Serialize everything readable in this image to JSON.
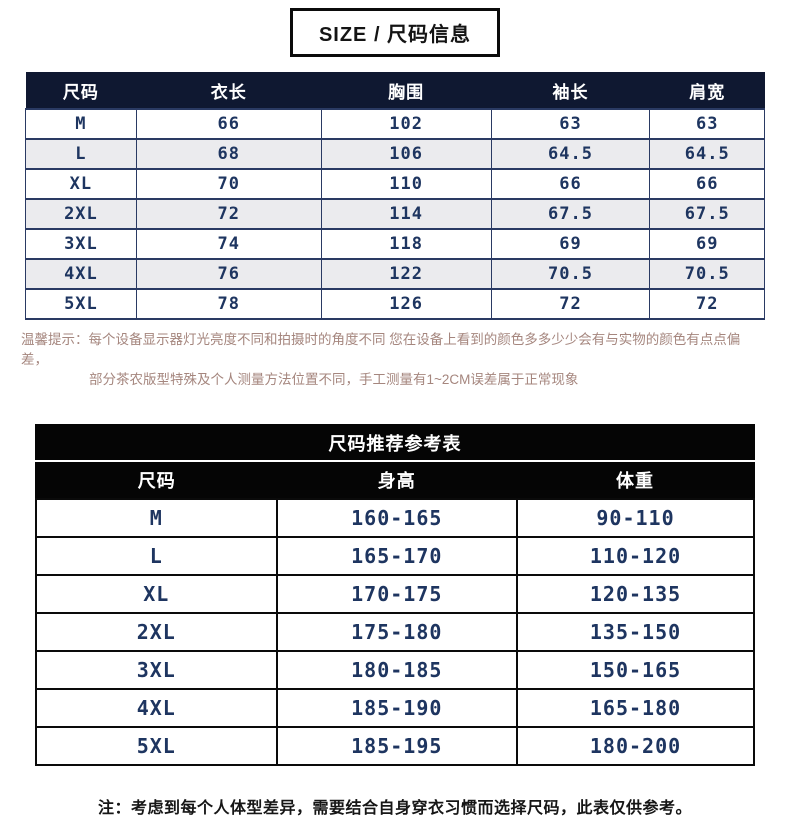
{
  "colors": {
    "header_navy": "#0f1831",
    "border_navy": "#2a3a63",
    "text_navy": "#1e3560",
    "alt_row": "#ebebee",
    "black": "#050505",
    "tip_text": "#a5867e",
    "note_text": "#161616",
    "badge_border": "#0b0b0b"
  },
  "title_badge": {
    "text": "SIZE / 尺码信息"
  },
  "size_table": {
    "columns": [
      "尺码",
      "衣长",
      "胸围",
      "袖长",
      "肩宽"
    ],
    "rows": [
      [
        "M",
        "66",
        "102",
        "63",
        "63"
      ],
      [
        "L",
        "68",
        "106",
        "64.5",
        "64.5"
      ],
      [
        "XL",
        "70",
        "110",
        "66",
        "66"
      ],
      [
        "2XL",
        "72",
        "114",
        "67.5",
        "67.5"
      ],
      [
        "3XL",
        "74",
        "118",
        "69",
        "69"
      ],
      [
        "4XL",
        "76",
        "122",
        "70.5",
        "70.5"
      ],
      [
        "5XL",
        "78",
        "126",
        "72",
        "72"
      ]
    ]
  },
  "notice": {
    "label": "温馨提示：",
    "line1": "每个设备显示器灯光亮度不同和拍摄时的角度不同 您在设备上看到的颜色多多少少会有与实物的颜色有点点偏差，",
    "line2": "部分茶农版型特殊及个人测量方法位置不同，手工测量有1~2CM误差属于正常现象"
  },
  "reference_table": {
    "title": "尺码推荐参考表",
    "columns": [
      "尺码",
      "身高",
      "体重"
    ],
    "rows": [
      [
        "M",
        "160-165",
        "90-110"
      ],
      [
        "L",
        "165-170",
        "110-120"
      ],
      [
        "XL",
        "170-175",
        "120-135"
      ],
      [
        "2XL",
        "175-180",
        "135-150"
      ],
      [
        "3XL",
        "180-185",
        "150-165"
      ],
      [
        "4XL",
        "185-190",
        "165-180"
      ],
      [
        "5XL",
        "185-195",
        "180-200"
      ]
    ]
  },
  "footnote": {
    "text": "注：考虑到每个人体型差异，需要结合自身穿衣习惯而选择尺码，此表仅供参考。"
  }
}
